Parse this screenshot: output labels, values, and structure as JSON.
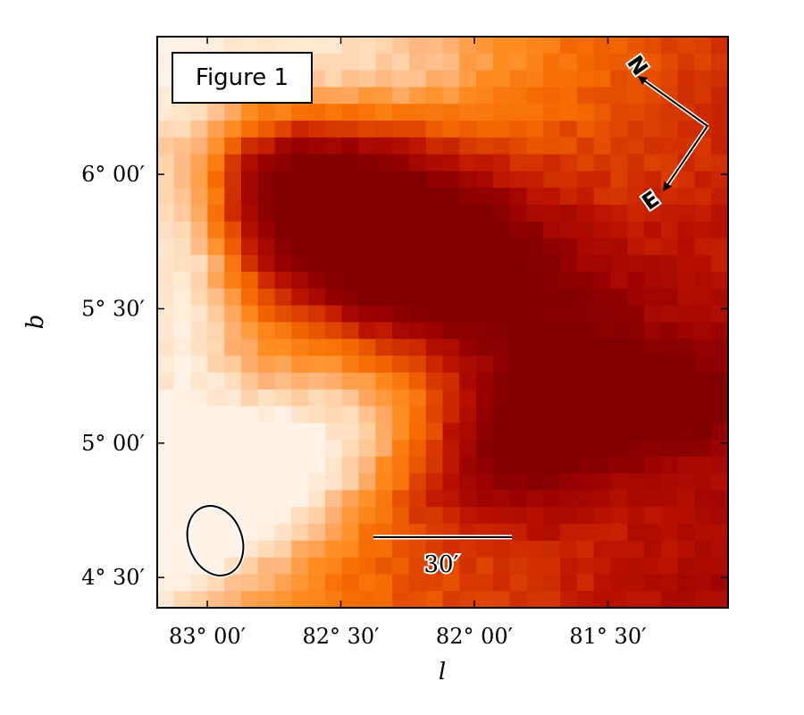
{
  "chart_data": {
    "type": "heatmap",
    "title": "",
    "legend_label": "Figure 1",
    "legend_position": "top-left",
    "xlabel": "l",
    "ylabel": "b",
    "xlim_deg": [
      83.1875,
      81.05
    ],
    "ylim_deg": [
      4.3875,
      6.5125
    ],
    "x_ticks": [
      {
        "value": 83.0,
        "label": "83° 00′"
      },
      {
        "value": 82.5,
        "label": "82° 30′"
      },
      {
        "value": 82.0,
        "label": "82° 00′"
      },
      {
        "value": 81.5,
        "label": "81° 30′"
      }
    ],
    "y_ticks": [
      {
        "value": 6.0,
        "label": "6° 00′"
      },
      {
        "value": 5.5,
        "label": "5° 30′"
      },
      {
        "value": 5.0,
        "label": "5° 00′"
      },
      {
        "value": 4.5,
        "label": "4° 30′"
      }
    ],
    "colormap": [
      "#fff2e6",
      "#ffd7b0",
      "#ffb073",
      "#ff8c1f",
      "#f56a00",
      "#d93a00",
      "#b81000",
      "#960000",
      "#800000"
    ],
    "grid": false,
    "scale_bar_label": "30′",
    "compass": {
      "north_label": "N",
      "east_label": "E"
    },
    "beam": {
      "shape": "ellipse"
    }
  }
}
